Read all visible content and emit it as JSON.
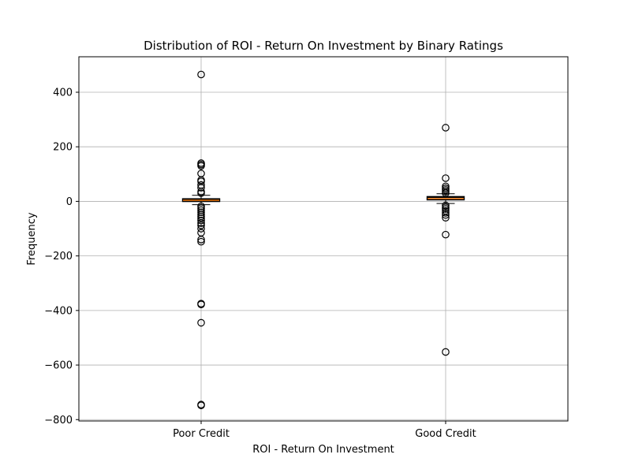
{
  "chart_data": {
    "type": "box",
    "title": "Distribution of ROI - Return On Investment by Binary Ratings",
    "xlabel": "ROI - Return On Investment",
    "ylabel": "Frequency",
    "ylim": [
      -805,
      530
    ],
    "yticks": [
      -800,
      -600,
      -400,
      -200,
      0,
      200,
      400
    ],
    "ytick_labels": [
      "−800",
      "−600",
      "−400",
      "−200",
      "0",
      "200",
      "400"
    ],
    "grid": true,
    "categories": [
      "Poor Credit",
      "Good Credit"
    ],
    "series": [
      {
        "category": "Poor Credit",
        "whisker_low": -12,
        "q1": 1,
        "median": 4,
        "q3": 8,
        "whisker_high": 22,
        "outliers": [
          465,
          140,
          135,
          130,
          102,
          78,
          73,
          60,
          50,
          36,
          30,
          -18,
          -25,
          -32,
          -40,
          -48,
          -55,
          -62,
          -70,
          -80,
          -88,
          -100,
          -115,
          -140,
          -148,
          -375,
          -378,
          -445,
          -745,
          -748
        ]
      },
      {
        "category": "Good Credit",
        "whisker_low": -8,
        "q1": 7,
        "median": 10,
        "q3": 16,
        "whisker_high": 28,
        "outliers": [
          270,
          85,
          55,
          48,
          42,
          36,
          30,
          -15,
          -22,
          -28,
          -35,
          -42,
          -50,
          -60,
          -122,
          -552
        ]
      }
    ]
  }
}
